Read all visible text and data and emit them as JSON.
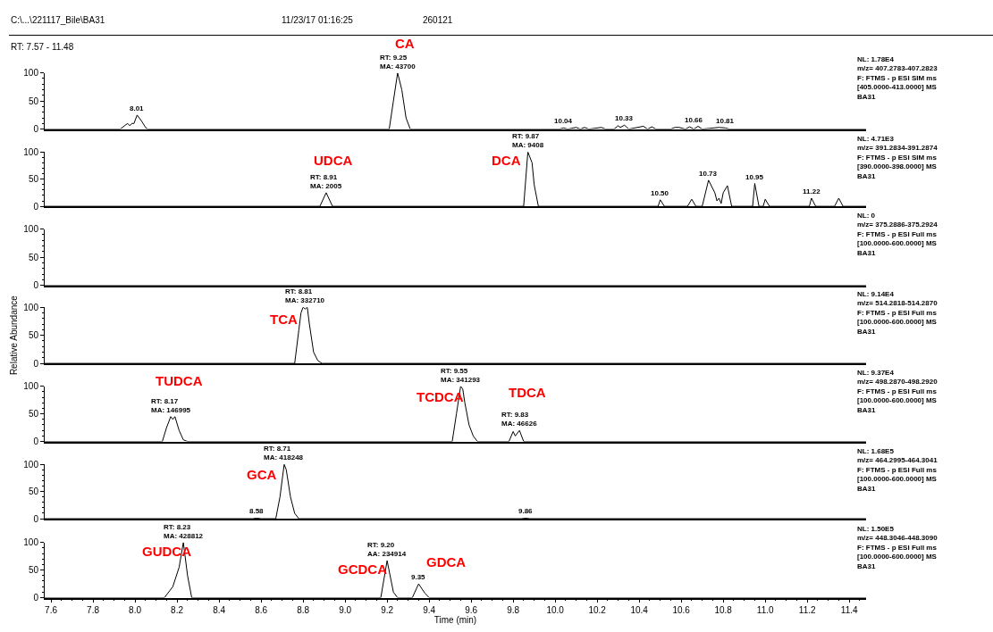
{
  "chart_data": [
    {
      "type": "line",
      "title": "C:\\...\\221117_Bile\\BA31",
      "subtitle": "RT: 7.57 - 11.48",
      "color": "#000000",
      "xlim": [
        7.57,
        11.48
      ],
      "ylim": [
        0,
        100
      ],
      "yticks": [
        0,
        50,
        100
      ],
      "tick_labels": "y",
      "x": [
        7.57,
        7.93,
        7.95,
        7.965,
        7.975,
        7.985,
        7.995,
        8.01,
        8.03,
        8.05,
        8.06,
        9.21,
        9.23,
        9.25,
        9.27,
        9.29,
        9.31,
        10.02,
        10.04,
        10.06,
        10.1,
        10.12,
        10.14,
        10.16,
        10.22,
        10.24,
        10.28,
        10.3,
        10.31,
        10.33,
        10.35,
        10.42,
        10.44,
        10.46,
        10.48,
        10.55,
        10.57,
        10.59,
        10.62,
        10.64,
        10.66,
        10.68,
        10.7,
        10.78,
        10.81,
        10.83,
        11.48
      ],
      "values": [
        0,
        0,
        6,
        10,
        6,
        10,
        10,
        25,
        15,
        3,
        0,
        0,
        50,
        100,
        70,
        20,
        0,
        0,
        2,
        0,
        3,
        0,
        3,
        0,
        3,
        0,
        0,
        6,
        3,
        7,
        0,
        5,
        0,
        4,
        0,
        0,
        3,
        3,
        0,
        4,
        0,
        5,
        0,
        3,
        2,
        0,
        0
      ],
      "annotations": [
        "11/23/17 01:16:25",
        "260121",
        "NL: 1.78E4\nm/z= 407.2783-407.2823\nF: FTMS - p ESI SIM ms\n[405.0000-413.0000] MS\nBA31",
        "CA",
        {
          "text": "8.01",
          "x": 8.01,
          "y": 25
        },
        {
          "text": "RT: 9.25\nMA: 43700",
          "x": 9.25,
          "y": 100
        },
        {
          "text": "10.04",
          "x": 10.04,
          "y": 2
        },
        {
          "text": "10.33",
          "x": 10.33,
          "y": 7
        },
        {
          "text": "10.66",
          "x": 10.66,
          "y": 4
        },
        {
          "text": "10.81",
          "x": 10.81,
          "y": 2
        }
      ]
    },
    {
      "type": "line",
      "color": "#000000",
      "xlim": [
        7.57,
        11.48
      ],
      "ylim": [
        0,
        100
      ],
      "yticks": [
        0,
        50,
        100
      ],
      "tick_labels": "y",
      "x": [
        7.57,
        8.88,
        8.91,
        8.94,
        9.85,
        9.87,
        9.89,
        9.9,
        9.92,
        10.49,
        10.5,
        10.52,
        10.63,
        10.65,
        10.67,
        10.7,
        10.73,
        10.76,
        10.77,
        10.78,
        10.79,
        10.8,
        10.82,
        10.84,
        10.94,
        10.95,
        10.97,
        10.99,
        11.0,
        11.02,
        11.21,
        11.22,
        11.24,
        11.33,
        11.35,
        11.37,
        11.48
      ],
      "values": [
        0,
        0,
        25,
        0,
        0,
        100,
        80,
        40,
        0,
        0,
        12,
        0,
        0,
        13,
        0,
        0,
        48,
        25,
        10,
        15,
        5,
        25,
        38,
        0,
        0,
        42,
        0,
        0,
        13,
        0,
        0,
        15,
        0,
        0,
        15,
        0,
        0
      ],
      "annotations": [
        "NL: 4.71E3\nm/z= 391.2834-391.2874\nF: FTMS - p ESI SIM ms\n[390.0000-398.0000] MS\nBA31",
        "UDCA",
        "DCA",
        {
          "text": "RT: 8.91\nMA: 2005",
          "x": 8.91,
          "y": 25
        },
        {
          "text": "RT: 9.87\nMA: 9408",
          "x": 9.87,
          "y": 100
        },
        {
          "text": "10.50",
          "x": 10.5,
          "y": 12
        },
        {
          "text": "10.73",
          "x": 10.73,
          "y": 48
        },
        {
          "text": "10.95",
          "x": 10.95,
          "y": 42
        },
        {
          "text": "11.22",
          "x": 11.22,
          "y": 15
        }
      ]
    },
    {
      "type": "line",
      "color": "#000000",
      "xlim": [
        7.57,
        11.48
      ],
      "ylim": [
        0,
        100
      ],
      "yticks": [
        0,
        50,
        100
      ],
      "tick_labels": "y",
      "x": [
        7.57,
        11.48
      ],
      "values": [
        0,
        0
      ],
      "annotations": [
        "NL: 0\nm/z= 375.2886-375.2924\nF: FTMS - p ESI Full ms\n[100.0000-600.0000] MS\nBA31"
      ]
    },
    {
      "type": "line",
      "ylabel": "Relative Abundance",
      "color": "#000000",
      "xlim": [
        7.57,
        11.48
      ],
      "ylim": [
        0,
        100
      ],
      "yticks": [
        0,
        50,
        100
      ],
      "tick_labels": "y",
      "x": [
        7.57,
        8.76,
        8.78,
        8.79,
        8.8,
        8.81,
        8.82,
        8.83,
        8.85,
        8.87,
        8.89,
        11.48
      ],
      "values": [
        0,
        0,
        60,
        90,
        100,
        97,
        100,
        70,
        20,
        5,
        0,
        0
      ],
      "annotations": [
        "NL: 9.14E4\nm/z= 514.2818-514.2870\nF: FTMS - p ESI Full ms\n[100.0000-600.0000] MS\nBA31",
        "TCA",
        {
          "text": "RT: 8.81\nMA: 332710",
          "x": 8.81,
          "y": 100
        }
      ]
    },
    {
      "type": "line",
      "color": "#000000",
      "xlim": [
        7.57,
        11.48
      ],
      "ylim": [
        0,
        100
      ],
      "yticks": [
        0,
        50,
        100
      ],
      "tick_labels": "y",
      "x": [
        7.57,
        8.13,
        8.15,
        8.17,
        8.18,
        8.19,
        8.21,
        8.23,
        8.25,
        9.51,
        9.53,
        9.55,
        9.56,
        9.57,
        9.59,
        9.61,
        9.63,
        9.78,
        9.8,
        9.81,
        9.83,
        9.85,
        11.48
      ],
      "values": [
        0,
        0,
        25,
        45,
        40,
        45,
        20,
        3,
        0,
        0,
        50,
        100,
        95,
        70,
        30,
        10,
        0,
        0,
        18,
        10,
        20,
        0,
        0
      ],
      "annotations": [
        "NL: 9.37E4\nm/z= 498.2870-498.2920\nF: FTMS - p ESI Full ms\n[100.0000-600.0000] MS\nBA31",
        "TUDCA",
        "TCDCA",
        "TDCA",
        {
          "text": "RT: 8.17\nMA: 146995",
          "x": 8.17,
          "y": 45
        },
        {
          "text": "RT: 9.55\nMA: 341293",
          "x": 9.55,
          "y": 100
        },
        {
          "text": "RT: 9.83\nMA: 46626",
          "x": 9.83,
          "y": 20
        }
      ]
    },
    {
      "type": "line",
      "color": "#000000",
      "xlim": [
        7.57,
        11.48
      ],
      "ylim": [
        0,
        100
      ],
      "yticks": [
        0,
        50,
        100
      ],
      "tick_labels": "y",
      "x": [
        7.57,
        8.56,
        8.58,
        8.6,
        8.67,
        8.69,
        8.71,
        8.72,
        8.74,
        8.76,
        8.78,
        9.84,
        9.86,
        9.88,
        11.48
      ],
      "values": [
        0,
        0,
        1,
        0,
        0,
        40,
        100,
        90,
        40,
        10,
        0,
        0,
        1,
        0,
        0
      ],
      "annotations": [
        "NL: 1.68E5\nm/z= 464.2995-464.3041\nF: FTMS - p ESI Full ms\n[100.0000-600.0000] MS\nBA31",
        "GCA",
        {
          "text": "8.58",
          "x": 8.58,
          "y": 1
        },
        {
          "text": "RT: 8.71\nMA: 418248",
          "x": 8.71,
          "y": 100
        },
        {
          "text": "9.86",
          "x": 9.86,
          "y": 1
        }
      ]
    },
    {
      "type": "line",
      "xlabel": "Time (min)",
      "color": "#000000",
      "xlim": [
        7.57,
        11.48
      ],
      "ylim": [
        0,
        100
      ],
      "yticks": [
        0,
        50,
        100
      ],
      "xticks": [
        7.6,
        7.8,
        {
          "value": 8,
          "label": "8.0"
        },
        8.2,
        8.4,
        8.6,
        8.8,
        {
          "value": 9,
          "label": "9.0"
        },
        9.2,
        9.4,
        9.6,
        9.8,
        {
          "value": 10,
          "label": "10.0"
        },
        10.2,
        10.4,
        10.6,
        10.8,
        {
          "value": 11,
          "label": "11.0"
        },
        11.2,
        11.4
      ],
      "x": [
        7.57,
        8.14,
        8.18,
        8.21,
        8.23,
        8.25,
        8.27,
        9.17,
        9.2,
        9.23,
        9.25,
        9.32,
        9.35,
        9.38,
        9.4,
        11.48
      ],
      "values": [
        0,
        0,
        20,
        55,
        100,
        40,
        0,
        0,
        67,
        10,
        0,
        0,
        25,
        8,
        0,
        0
      ],
      "annotations": [
        "NL: 1.50E5\nm/z= 448.3046-448.3090\nF: FTMS - p ESI Full ms\n[100.0000-600.0000] MS\nBA31",
        "GUDCA",
        "GCDCA",
        "GDCA",
        {
          "text": "RT: 8.23\nMA: 428812",
          "x": 8.23,
          "y": 100
        },
        {
          "text": "RT: 9.20\nAA: 234914",
          "x": 9.2,
          "y": 67
        },
        {
          "text": "9.35",
          "x": 9.35,
          "y": 25
        }
      ]
    }
  ]
}
